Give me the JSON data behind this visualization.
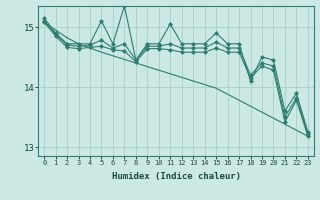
{
  "xlabel": "Humidex (Indice chaleur)",
  "ylabel": "",
  "background_color": "#cce8e4",
  "grid_color": "#aad4cc",
  "line_color": "#2e7d6e",
  "xlim": [
    -0.5,
    23.5
  ],
  "ylim": [
    12.85,
    15.35
  ],
  "yticks": [
    13,
    14,
    15
  ],
  "xticks": [
    0,
    1,
    2,
    3,
    4,
    5,
    6,
    7,
    8,
    9,
    10,
    11,
    12,
    13,
    14,
    15,
    16,
    17,
    18,
    19,
    20,
    21,
    22,
    23
  ],
  "series": {
    "max": [
      15.15,
      14.9,
      14.72,
      14.72,
      14.72,
      15.1,
      14.72,
      15.35,
      14.45,
      14.72,
      14.72,
      15.05,
      14.72,
      14.72,
      14.72,
      14.9,
      14.72,
      14.72,
      14.1,
      14.5,
      14.45,
      13.6,
      13.9,
      13.25
    ],
    "mean": [
      15.1,
      14.88,
      14.7,
      14.68,
      14.7,
      14.78,
      14.65,
      14.72,
      14.45,
      14.68,
      14.68,
      14.72,
      14.65,
      14.65,
      14.65,
      14.75,
      14.65,
      14.65,
      14.2,
      14.4,
      14.35,
      13.5,
      13.82,
      13.22
    ],
    "min": [
      15.08,
      14.85,
      14.66,
      14.64,
      14.66,
      14.68,
      14.62,
      14.6,
      14.42,
      14.64,
      14.64,
      14.62,
      14.58,
      14.58,
      14.58,
      14.65,
      14.58,
      14.58,
      14.15,
      14.35,
      14.28,
      13.42,
      13.78,
      13.18
    ],
    "trend": [
      15.08,
      14.95,
      14.82,
      14.72,
      14.65,
      14.58,
      14.52,
      14.46,
      14.4,
      14.34,
      14.28,
      14.22,
      14.16,
      14.1,
      14.04,
      13.98,
      13.88,
      13.78,
      13.68,
      13.58,
      13.48,
      13.38,
      13.28,
      13.18
    ]
  }
}
